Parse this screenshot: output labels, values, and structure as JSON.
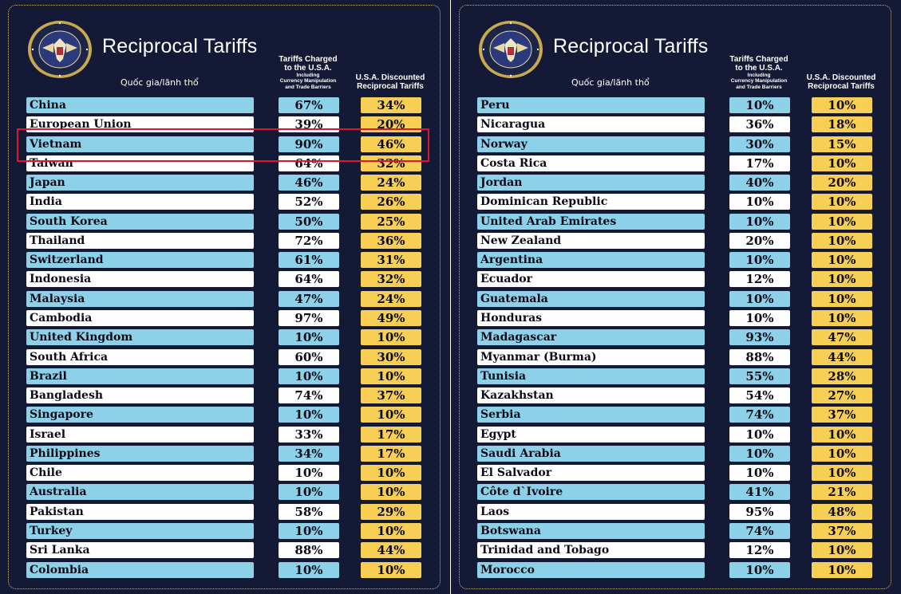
{
  "colors": {
    "background": "#141a36",
    "row_blue": "#8dd1e8",
    "row_white": "#ffffff",
    "discount_yellow": "#f8cf55",
    "highlight_red": "#e0142b",
    "frame_gold": "#c9b989"
  },
  "icons": {
    "seal": "presidential-seal-icon"
  },
  "header": {
    "title": "Reciprocal Tariffs",
    "country_label": "Quốc gia/lãnh thổ",
    "charged_line1": "Tariffs Charged",
    "charged_line2": "to the U.S.A.",
    "charged_line3": "Including",
    "charged_line4": "Currency Manipulation",
    "charged_line5": "and Trade Barriers",
    "discount_line1": "U.S.A. Discounted",
    "discount_line2": "Reciprocal Tariffs"
  },
  "highlighted_country": "Vietnam",
  "left_table": [
    {
      "country": "China",
      "charged": "67%",
      "discounted": "34%"
    },
    {
      "country": "European Union",
      "charged": "39%",
      "discounted": "20%"
    },
    {
      "country": "Vietnam",
      "charged": "90%",
      "discounted": "46%"
    },
    {
      "country": "Taiwan",
      "charged": "64%",
      "discounted": "32%"
    },
    {
      "country": "Japan",
      "charged": "46%",
      "discounted": "24%"
    },
    {
      "country": "India",
      "charged": "52%",
      "discounted": "26%"
    },
    {
      "country": "South Korea",
      "charged": "50%",
      "discounted": "25%"
    },
    {
      "country": "Thailand",
      "charged": "72%",
      "discounted": "36%"
    },
    {
      "country": "Switzerland",
      "charged": "61%",
      "discounted": "31%"
    },
    {
      "country": "Indonesia",
      "charged": "64%",
      "discounted": "32%"
    },
    {
      "country": "Malaysia",
      "charged": "47%",
      "discounted": "24%"
    },
    {
      "country": "Cambodia",
      "charged": "97%",
      "discounted": "49%"
    },
    {
      "country": "United Kingdom",
      "charged": "10%",
      "discounted": "10%"
    },
    {
      "country": "South Africa",
      "charged": "60%",
      "discounted": "30%"
    },
    {
      "country": "Brazil",
      "charged": "10%",
      "discounted": "10%"
    },
    {
      "country": "Bangladesh",
      "charged": "74%",
      "discounted": "37%"
    },
    {
      "country": "Singapore",
      "charged": "10%",
      "discounted": "10%"
    },
    {
      "country": "Israel",
      "charged": "33%",
      "discounted": "17%"
    },
    {
      "country": "Philippines",
      "charged": "34%",
      "discounted": "17%"
    },
    {
      "country": "Chile",
      "charged": "10%",
      "discounted": "10%"
    },
    {
      "country": "Australia",
      "charged": "10%",
      "discounted": "10%"
    },
    {
      "country": "Pakistan",
      "charged": "58%",
      "discounted": "29%"
    },
    {
      "country": "Turkey",
      "charged": "10%",
      "discounted": "10%"
    },
    {
      "country": "Sri Lanka",
      "charged": "88%",
      "discounted": "44%"
    },
    {
      "country": "Colombia",
      "charged": "10%",
      "discounted": "10%"
    }
  ],
  "right_table": [
    {
      "country": "Peru",
      "charged": "10%",
      "discounted": "10%"
    },
    {
      "country": "Nicaragua",
      "charged": "36%",
      "discounted": "18%"
    },
    {
      "country": "Norway",
      "charged": "30%",
      "discounted": "15%"
    },
    {
      "country": "Costa Rica",
      "charged": "17%",
      "discounted": "10%"
    },
    {
      "country": "Jordan",
      "charged": "40%",
      "discounted": "20%"
    },
    {
      "country": "Dominican Republic",
      "charged": "10%",
      "discounted": "10%"
    },
    {
      "country": "United Arab Emirates",
      "charged": "10%",
      "discounted": "10%"
    },
    {
      "country": "New Zealand",
      "charged": "20%",
      "discounted": "10%"
    },
    {
      "country": "Argentina",
      "charged": "10%",
      "discounted": "10%"
    },
    {
      "country": "Ecuador",
      "charged": "12%",
      "discounted": "10%"
    },
    {
      "country": "Guatemala",
      "charged": "10%",
      "discounted": "10%"
    },
    {
      "country": "Honduras",
      "charged": "10%",
      "discounted": "10%"
    },
    {
      "country": "Madagascar",
      "charged": "93%",
      "discounted": "47%"
    },
    {
      "country": "Myanmar (Burma)",
      "charged": "88%",
      "discounted": "44%"
    },
    {
      "country": "Tunisia",
      "charged": "55%",
      "discounted": "28%"
    },
    {
      "country": "Kazakhstan",
      "charged": "54%",
      "discounted": "27%"
    },
    {
      "country": "Serbia",
      "charged": "74%",
      "discounted": "37%"
    },
    {
      "country": "Egypt",
      "charged": "10%",
      "discounted": "10%"
    },
    {
      "country": "Saudi Arabia",
      "charged": "10%",
      "discounted": "10%"
    },
    {
      "country": "El Salvador",
      "charged": "10%",
      "discounted": "10%"
    },
    {
      "country": "Côte d`Ivoire",
      "charged": "41%",
      "discounted": "21%"
    },
    {
      "country": "Laos",
      "charged": "95%",
      "discounted": "48%"
    },
    {
      "country": "Botswana",
      "charged": "74%",
      "discounted": "37%"
    },
    {
      "country": "Trinidad and Tobago",
      "charged": "12%",
      "discounted": "10%"
    },
    {
      "country": "Morocco",
      "charged": "10%",
      "discounted": "10%"
    }
  ]
}
